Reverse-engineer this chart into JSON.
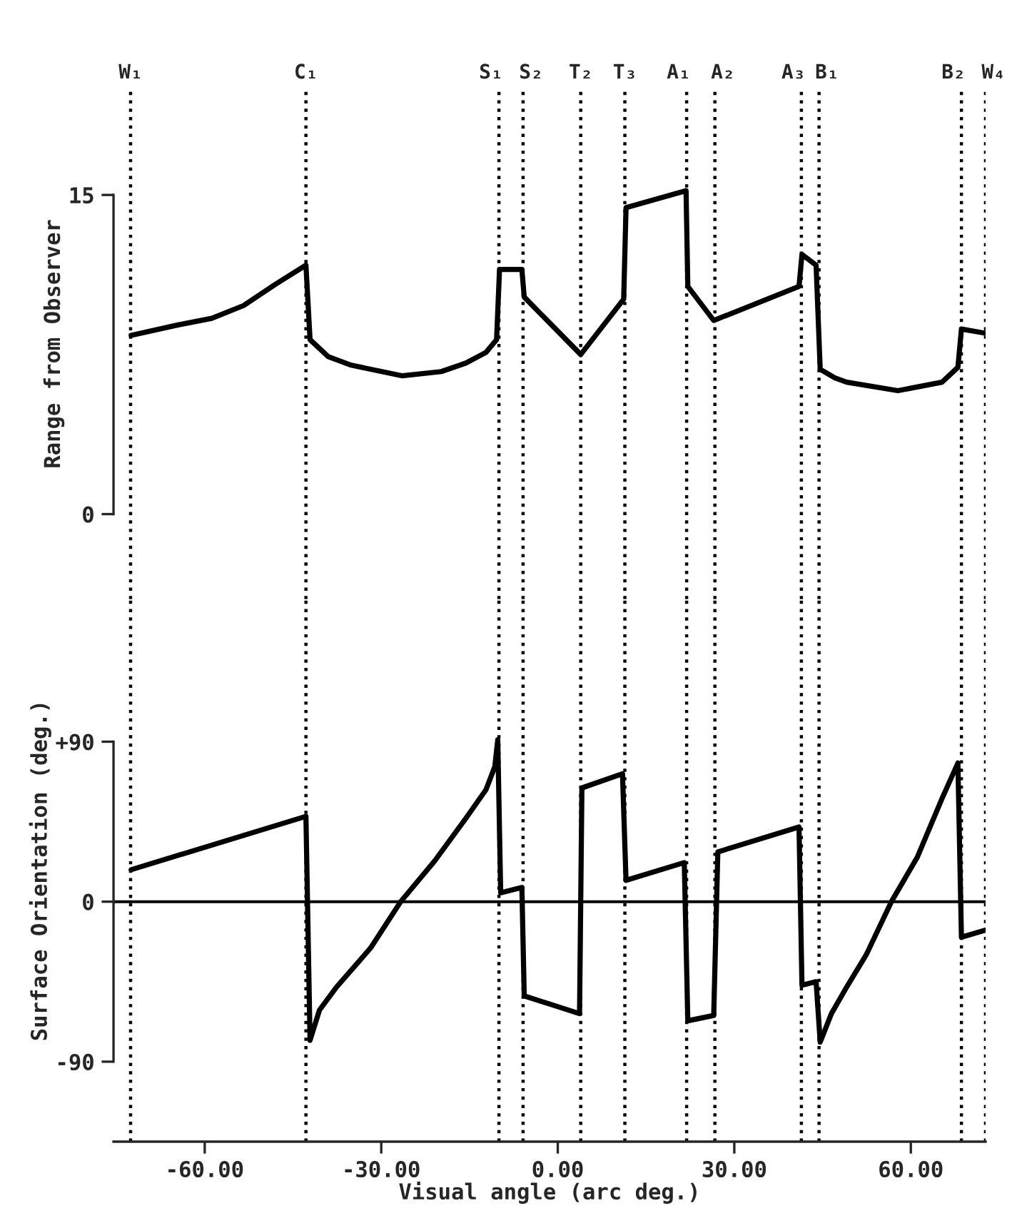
{
  "chart_data": [
    {
      "type": "line",
      "ylabel": "Range from Observer",
      "xlim": [
        -75.5,
        72.7
      ],
      "ylim": [
        -4,
        20
      ],
      "yticks": [
        0,
        15
      ],
      "tick_labels": "y",
      "grid": false,
      "marker": "none",
      "line_style": "solid",
      "series": [
        {
          "color": "#000000",
          "x": [
            -72.5,
            -64.4,
            -58.8,
            -53.4,
            -48.0,
            -42.8,
            -42.1,
            -39.0,
            -35.1,
            -26.4,
            -19.8,
            -15.6,
            -12.2,
            -10.4,
            -9.9,
            -6.1,
            -5.7,
            3.9,
            11.2,
            11.6,
            21.8,
            22.1,
            26.5,
            41.0,
            41.5,
            43.9,
            44.6,
            47.1,
            49.1,
            57.8,
            65.3,
            68.0,
            68.6,
            72.7
          ],
          "values": [
            8.4,
            8.9,
            9.2,
            9.8,
            10.8,
            11.7,
            8.2,
            7.4,
            7.0,
            6.5,
            6.7,
            7.1,
            7.6,
            8.2,
            11.5,
            11.5,
            10.2,
            7.5,
            10.1,
            14.4,
            15.2,
            10.7,
            9.1,
            10.7,
            12.2,
            11.7,
            6.8,
            6.4,
            6.2,
            5.8,
            6.2,
            6.9,
            8.7,
            8.5
          ]
        }
      ],
      "ref_lines": [
        {
          "axis": "x",
          "value": -72.6,
          "label": "W₁",
          "line_style": "dotted",
          "color": "#000000"
        },
        {
          "axis": "x",
          "value": -42.8,
          "label": "C₁",
          "line_style": "dotted",
          "color": "#000000"
        },
        {
          "axis": "x",
          "value": -10.0,
          "label": "S₁",
          "line_style": "dotted",
          "color": "#000000"
        },
        {
          "axis": "x",
          "value": -5.9,
          "label": "S₂",
          "line_style": "dotted",
          "color": "#000000"
        },
        {
          "axis": "x",
          "value": 3.9,
          "label": "T₂",
          "line_style": "dotted",
          "color": "#000000"
        },
        {
          "axis": "x",
          "value": 11.4,
          "label": "T₃",
          "line_style": "dotted",
          "color": "#000000"
        },
        {
          "axis": "x",
          "value": 21.9,
          "label": "A₁",
          "line_style": "dotted",
          "color": "#000000"
        },
        {
          "axis": "x",
          "value": 26.7,
          "label": "A₂",
          "line_style": "dotted",
          "color": "#000000"
        },
        {
          "axis": "x",
          "value": 41.4,
          "label": "A₃",
          "line_style": "dotted",
          "color": "#000000"
        },
        {
          "axis": "x",
          "value": 44.4,
          "label": "B₁",
          "line_style": "dotted",
          "color": "#000000"
        },
        {
          "axis": "x",
          "value": 68.6,
          "label": "B₂",
          "line_style": "dotted",
          "color": "#000000"
        },
        {
          "axis": "x",
          "value": 72.7,
          "label": "W₄",
          "line_style": "dotted",
          "color": "#000000"
        }
      ]
    },
    {
      "type": "line",
      "ylabel": "Surface Orientation (deg.)",
      "xlabel": "Visual angle (arc deg.)",
      "xlim": [
        -75.5,
        72.7
      ],
      "ylim": [
        -135,
        170
      ],
      "xticks": [
        {
          "value": -60,
          "label": "-60.00"
        },
        {
          "value": -30,
          "label": "-30.00"
        },
        {
          "value": 0,
          "label": "0.00"
        },
        {
          "value": 30,
          "label": "30.00"
        },
        {
          "value": 60,
          "label": "60.00"
        }
      ],
      "yticks": [
        {
          "value": -90,
          "label": "-90"
        },
        0,
        {
          "value": 90,
          "label": "+90"
        }
      ],
      "grid": false,
      "marker": "none",
      "line_style": "solid",
      "series": [
        {
          "color": "#000000",
          "x": [
            -72.5,
            -42.8,
            -42.1,
            -40.5,
            -37.6,
            -31.8,
            -26.7,
            -20.9,
            -15.6,
            -12.2,
            -10.7,
            -10.2,
            -9.7,
            -6.1,
            -5.7,
            3.7,
            4.1,
            11.0,
            11.6,
            21.5,
            22.1,
            26.5,
            27.2,
            41.0,
            41.5,
            43.9,
            44.6,
            46.5,
            49.1,
            52.4,
            56.7,
            61.1,
            65.3,
            68.0,
            68.6,
            72.7
          ],
          "values": [
            18,
            48,
            -78,
            -61,
            -48,
            -26,
            0,
            23,
            47,
            63,
            76,
            91,
            5,
            8,
            -53,
            -63,
            64,
            72,
            12,
            22,
            -67,
            -64,
            28,
            42,
            -47,
            -45,
            -79,
            -63,
            -48,
            -30,
            0,
            25,
            58,
            78,
            -20,
            -16
          ]
        }
      ],
      "ref_lines": [
        {
          "axis": "y",
          "value": 0,
          "color": "#000000",
          "line_style": "solid"
        },
        {
          "axis": "x",
          "value": -72.6,
          "line_style": "dotted",
          "color": "#000000"
        },
        {
          "axis": "x",
          "value": -42.8,
          "line_style": "dotted",
          "color": "#000000"
        },
        {
          "axis": "x",
          "value": -10.0,
          "line_style": "dotted",
          "color": "#000000"
        },
        {
          "axis": "x",
          "value": -5.9,
          "line_style": "dotted",
          "color": "#000000"
        },
        {
          "axis": "x",
          "value": 3.9,
          "line_style": "dotted",
          "color": "#000000"
        },
        {
          "axis": "x",
          "value": 11.4,
          "line_style": "dotted",
          "color": "#000000"
        },
        {
          "axis": "x",
          "value": 21.9,
          "line_style": "dotted",
          "color": "#000000"
        },
        {
          "axis": "x",
          "value": 26.7,
          "line_style": "dotted",
          "color": "#000000"
        },
        {
          "axis": "x",
          "value": 41.4,
          "line_style": "dotted",
          "color": "#000000"
        },
        {
          "axis": "x",
          "value": 44.4,
          "line_style": "dotted",
          "color": "#000000"
        },
        {
          "axis": "x",
          "value": 68.6,
          "line_style": "dotted",
          "color": "#000000"
        },
        {
          "axis": "x",
          "value": 72.7,
          "line_style": "dotted",
          "color": "#000000"
        }
      ]
    }
  ]
}
